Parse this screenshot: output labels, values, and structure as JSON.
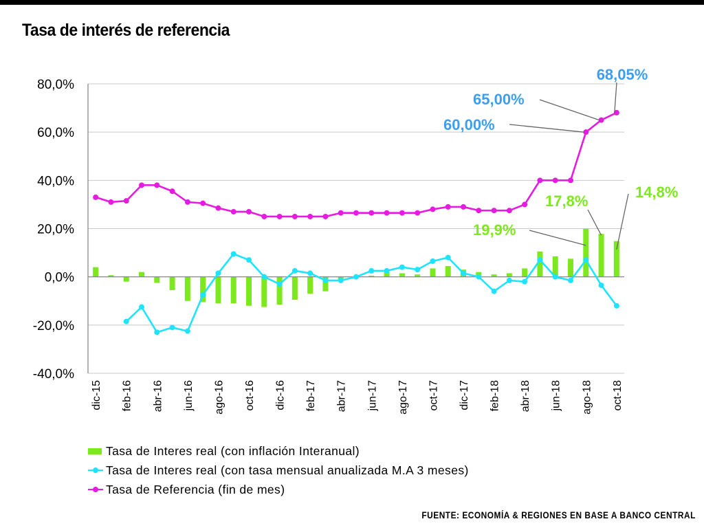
{
  "page": {
    "title": "Tasa de interés de referencia",
    "source": "FUENTE: ECONOMÍA & REGIONES EN BASE A BANCO CENTRAL"
  },
  "colors": {
    "bar": "#7ee81f",
    "line_real": "#1fe3ff",
    "line_ref": "#e51be0",
    "annot_ref": "#3d9ef0",
    "annot_bar": "#7ee81f",
    "grid": "#c8c8c8",
    "axis": "#808080"
  },
  "chart_data": {
    "type": "bar",
    "title": "Tasa de interés de referencia",
    "xlabel": "",
    "ylabel": "",
    "ylim": [
      -40,
      80
    ],
    "yticks": [
      -40,
      -20,
      0,
      20,
      40,
      60,
      80
    ],
    "ytick_labels": [
      "-40,0%",
      "-20,0%",
      "0,0%",
      "20,0%",
      "40,0%",
      "60,0%",
      "80,0%"
    ],
    "grid": true,
    "legend_position": "bottom",
    "categories": [
      "dic-15",
      "ene-16",
      "feb-16",
      "mar-16",
      "abr-16",
      "may-16",
      "jun-16",
      "jul-16",
      "ago-16",
      "sep-16",
      "oct-16",
      "nov-16",
      "dic-16",
      "ene-17",
      "feb-17",
      "mar-17",
      "abr-17",
      "may-17",
      "jun-17",
      "jul-17",
      "ago-17",
      "sep-17",
      "oct-17",
      "nov-17",
      "dic-17",
      "ene-18",
      "feb-18",
      "mar-18",
      "abr-18",
      "may-18",
      "jun-18",
      "jul-18",
      "ago-18",
      "sep-18",
      "oct-18"
    ],
    "tick_labels": [
      "dic-15",
      "",
      "feb-16",
      "",
      "abr-16",
      "",
      "jun-16",
      "",
      "ago-16",
      "",
      "oct-16",
      "",
      "dic-16",
      "",
      "feb-17",
      "",
      "abr-17",
      "",
      "jun-17",
      "",
      "ago-17",
      "",
      "oct-17",
      "",
      "dic-17",
      "",
      "feb-18",
      "",
      "abr-18",
      "",
      "jun-18",
      "",
      "ago-18",
      "",
      "oct-18"
    ],
    "series": [
      {
        "name": "Tasa de Interes real (con inflación Interanual)",
        "kind": "bar",
        "values": [
          4.0,
          0.7,
          -2.0,
          2.0,
          -2.5,
          -5.5,
          -10.0,
          -10.5,
          -11.0,
          -11.0,
          -12.0,
          -12.5,
          -11.5,
          -9.5,
          -7.0,
          -6.0,
          -1.0,
          -0.5,
          0.5,
          2.0,
          1.5,
          1.0,
          3.5,
          4.5,
          3.0,
          2.0,
          1.0,
          1.5,
          3.5,
          10.5,
          8.5,
          7.5,
          19.9,
          17.8,
          14.8
        ]
      },
      {
        "name": "Tasa de Interes real (con tasa mensual anualizada M.A 3 meses)",
        "kind": "line",
        "values": [
          null,
          null,
          -18.5,
          -12.5,
          -23.0,
          -21.0,
          -22.5,
          -7.5,
          1.5,
          9.5,
          7.0,
          0.0,
          -3.0,
          2.5,
          1.5,
          -1.5,
          -1.5,
          0.0,
          2.5,
          2.5,
          4.0,
          3.0,
          6.5,
          8.0,
          1.5,
          0.0,
          -6.0,
          -1.5,
          -2.0,
          7.0,
          0.0,
          -1.5,
          7.0,
          -3.5,
          -12.0
        ]
      },
      {
        "name": "Tasa de Referencia  (fin de mes)",
        "kind": "line",
        "values": [
          33.0,
          31.0,
          31.5,
          38.0,
          38.0,
          35.5,
          31.0,
          30.5,
          28.5,
          27.0,
          27.0,
          25.0,
          25.0,
          25.0,
          25.0,
          25.0,
          26.5,
          26.5,
          26.5,
          26.5,
          26.5,
          26.5,
          28.0,
          29.0,
          29.0,
          27.5,
          27.5,
          27.5,
          30.0,
          40.0,
          40.0,
          40.0,
          60.0,
          65.0,
          68.05
        ]
      }
    ],
    "annotations": [
      {
        "text": "68,05%",
        "series": 2,
        "index": 34,
        "color_key": "annot_ref"
      },
      {
        "text": "65,00%",
        "series": 2,
        "index": 33,
        "color_key": "annot_ref"
      },
      {
        "text": "60,00%",
        "series": 2,
        "index": 32,
        "color_key": "annot_ref"
      },
      {
        "text": "14,8%",
        "series": 0,
        "index": 34,
        "color_key": "annot_bar"
      },
      {
        "text": "17,8%",
        "series": 0,
        "index": 33,
        "color_key": "annot_bar"
      },
      {
        "text": "19,9%",
        "series": 0,
        "index": 32,
        "color_key": "annot_bar"
      }
    ]
  }
}
